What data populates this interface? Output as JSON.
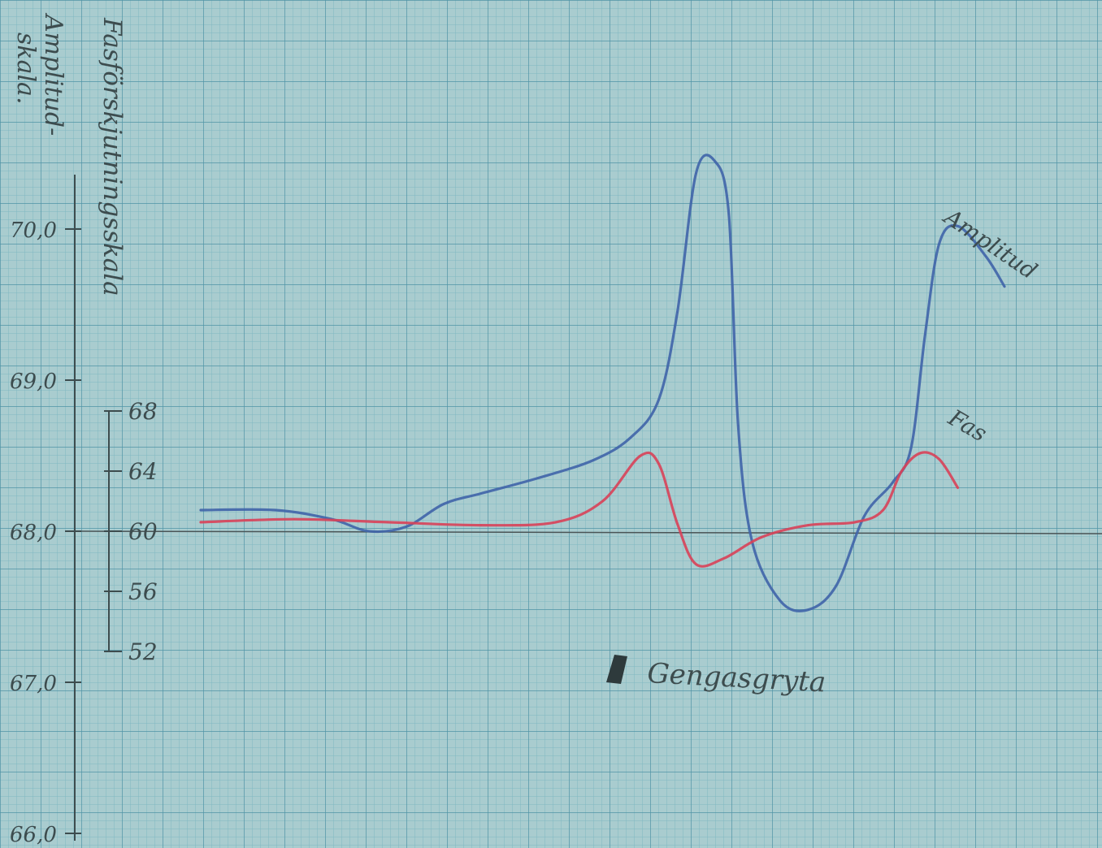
{
  "chart_data": {
    "type": "line",
    "x_unit": "approximate horizontal grid position (paper units, unlabeled axis)",
    "axes": {
      "amplitude": {
        "title_line1": "Amplitud-",
        "title_line2": "skala.",
        "ticks": [
          "70,0",
          "69,0",
          "68,0",
          "67,0",
          "66,0"
        ],
        "range": [
          66.0,
          70.5
        ]
      },
      "phase": {
        "title": "Fasförskjutningsskala",
        "ticks": [
          "68",
          "64",
          "60",
          "56",
          "52"
        ],
        "range": [
          52,
          68
        ]
      }
    },
    "series": [
      {
        "name": "Amplitud",
        "axis": "amplitude",
        "color": "#3f64a8",
        "points": [
          [
            0,
            68.14
          ],
          [
            8,
            68.14
          ],
          [
            14,
            68.08
          ],
          [
            18,
            68.0
          ],
          [
            22,
            68.03
          ],
          [
            26,
            68.18
          ],
          [
            30,
            68.25
          ],
          [
            36,
            68.35
          ],
          [
            42,
            68.47
          ],
          [
            46,
            68.62
          ],
          [
            49,
            68.87
          ],
          [
            51,
            69.45
          ],
          [
            53,
            70.37
          ],
          [
            55,
            70.45
          ],
          [
            56.5,
            70.1
          ],
          [
            57.5,
            68.7
          ],
          [
            59,
            67.93
          ],
          [
            62,
            67.54
          ],
          [
            65,
            67.48
          ],
          [
            68,
            67.64
          ],
          [
            71,
            68.1
          ],
          [
            74,
            68.32
          ],
          [
            76,
            68.55
          ],
          [
            77.5,
            69.3
          ],
          [
            79,
            69.9
          ],
          [
            81,
            70.02
          ],
          [
            84,
            69.82
          ],
          [
            86,
            69.62
          ]
        ]
      },
      {
        "name": "Fas",
        "axis": "phase",
        "color": "#d84158",
        "points": [
          [
            0,
            60.6
          ],
          [
            10,
            60.8
          ],
          [
            20,
            60.6
          ],
          [
            30,
            60.4
          ],
          [
            38,
            60.6
          ],
          [
            43,
            62.0
          ],
          [
            47,
            65.0
          ],
          [
            49,
            64.5
          ],
          [
            51,
            60.5
          ],
          [
            53,
            57.8
          ],
          [
            56,
            58.2
          ],
          [
            60,
            59.6
          ],
          [
            65,
            60.4
          ],
          [
            70,
            60.6
          ],
          [
            73,
            61.4
          ],
          [
            75,
            64.0
          ],
          [
            77,
            65.2
          ],
          [
            79,
            64.8
          ],
          [
            81,
            62.9
          ]
        ]
      }
    ],
    "series_labels": [
      "Amplitud",
      "Fas"
    ],
    "annotation": "Gengasgryta"
  },
  "colors": {
    "paper": "#a9cccf",
    "grid_minor": "#7fb7c2",
    "grid_major": "#4f94a6",
    "ink": "#3d4c4e",
    "amplitude": "#3f64a8",
    "phase": "#d84158"
  }
}
